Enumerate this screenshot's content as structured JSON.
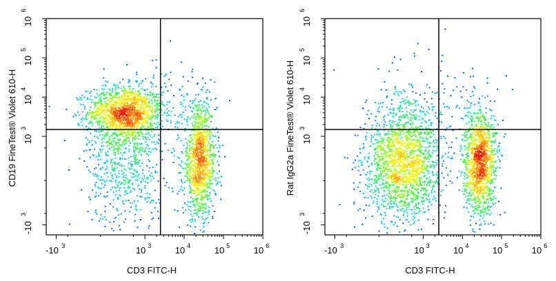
{
  "chart_data": [
    {
      "type": "scatter",
      "plot_style": "pseudocolor density dot plot, biexponential axes",
      "xlabel": "CD3 FITC-H",
      "ylabel": "CD19 FineTest® Violet 610-H",
      "x_ticks": [
        {
          "value": -1000,
          "base": "-10",
          "exp": "3"
        },
        {
          "value": 1000,
          "base": "10",
          "exp": "3"
        },
        {
          "value": 10000,
          "base": "10",
          "exp": "4"
        },
        {
          "value": 100000,
          "base": "10",
          "exp": "5"
        },
        {
          "value": 1000000,
          "base": "10",
          "exp": "6"
        }
      ],
      "y_ticks": [
        {
          "value": -1000,
          "base": "-10",
          "exp": "3"
        },
        {
          "value": 1000,
          "base": "10",
          "exp": "3"
        },
        {
          "value": 10000,
          "base": "10",
          "exp": "4"
        },
        {
          "value": 100000,
          "base": "10",
          "exp": "5"
        },
        {
          "value": 1000000,
          "base": "10",
          "exp": "6"
        }
      ],
      "quadrant_gate": {
        "x": 2500,
        "y": 1500
      },
      "populations": [
        {
          "x": 300,
          "y": 4000,
          "count": 1400,
          "spread_x": 0.5,
          "spread_y": 0.35
        },
        {
          "x": 300,
          "y": 200,
          "count": 650,
          "spread_x": 0.5,
          "spread_y": 0.9
        },
        {
          "x": 25000,
          "y": 200,
          "count": 1200,
          "spread_x": 0.22,
          "spread_y": 0.75
        },
        {
          "x": 6000,
          "y": 8000,
          "count": 70,
          "spread_x": 0.45,
          "spread_y": 0.6
        }
      ],
      "colormap": [
        "#0000ff",
        "#00ccff",
        "#33ff33",
        "#ffff00",
        "#ff8800",
        "#ff0000"
      ]
    },
    {
      "type": "scatter",
      "plot_style": "pseudocolor density dot plot, biexponential axes",
      "xlabel": "CD3 FITC-H",
      "ylabel": "Rat IgG2a FineTest® Violet 610-H",
      "x_ticks": [
        {
          "value": -1000,
          "base": "-10",
          "exp": "3"
        },
        {
          "value": 1000,
          "base": "10",
          "exp": "3"
        },
        {
          "value": 10000,
          "base": "10",
          "exp": "4"
        },
        {
          "value": 100000,
          "base": "10",
          "exp": "5"
        },
        {
          "value": 1000000,
          "base": "10",
          "exp": "6"
        }
      ],
      "y_ticks": [
        {
          "value": -1000,
          "base": "-10",
          "exp": "3"
        },
        {
          "value": 1000,
          "base": "10",
          "exp": "3"
        },
        {
          "value": 10000,
          "base": "10",
          "exp": "4"
        },
        {
          "value": 100000,
          "base": "10",
          "exp": "5"
        },
        {
          "value": 1000000,
          "base": "10",
          "exp": "6"
        }
      ],
      "quadrant_gate": {
        "x": 2500,
        "y": 1500
      },
      "populations": [
        {
          "x": 280,
          "y": 200,
          "count": 1800,
          "spread_x": 0.5,
          "spread_y": 0.8
        },
        {
          "x": 28000,
          "y": 200,
          "count": 1300,
          "spread_x": 0.22,
          "spread_y": 0.7
        },
        {
          "x": 2000,
          "y": 5000,
          "count": 120,
          "spread_x": 0.9,
          "spread_y": 0.9
        }
      ],
      "colormap": [
        "#0000ff",
        "#00ccff",
        "#33ff33",
        "#ffff00",
        "#ff8800",
        "#ff0000"
      ]
    }
  ]
}
